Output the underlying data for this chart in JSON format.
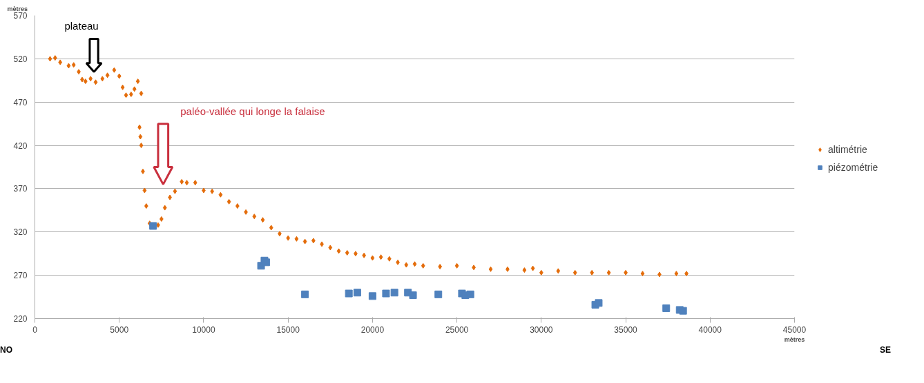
{
  "chart_data": {
    "type": "scatter",
    "xlabel": "mètres",
    "ylabel": "mètres",
    "xlim": [
      0,
      45000
    ],
    "ylim": [
      220,
      570
    ],
    "xticks": [
      0,
      5000,
      10000,
      15000,
      20000,
      25000,
      30000,
      35000,
      40000,
      45000
    ],
    "yticks": [
      220,
      270,
      320,
      370,
      420,
      470,
      520,
      570
    ],
    "grid": "y",
    "legend": "right",
    "annotations": [
      "plateau",
      "paléo-vallée qui longe la falaise",
      "NO",
      "SE"
    ],
    "series": [
      {
        "name": "altimétrie",
        "color": "#e46c0a",
        "marker": "diamond",
        "x": [
          900,
          1200,
          1500,
          2000,
          2300,
          2600,
          2800,
          3000,
          3300,
          3600,
          4000,
          4300,
          4700,
          5000,
          5200,
          5400,
          5700,
          5900,
          6100,
          6300,
          6200,
          6250,
          6300,
          6400,
          6500,
          6600,
          6800,
          7300,
          7500,
          7700,
          8000,
          8300,
          8700,
          9000,
          9500,
          10000,
          10500,
          11000,
          11500,
          12000,
          12500,
          13000,
          13500,
          14000,
          14500,
          15000,
          15500,
          16000,
          16500,
          17000,
          17500,
          18000,
          18500,
          19000,
          19500,
          20000,
          20500,
          21000,
          21500,
          22000,
          22500,
          23000,
          24000,
          25000,
          26000,
          27000,
          28000,
          29000,
          29500,
          30000,
          31000,
          32000,
          33000,
          34000,
          35000,
          36000,
          37000,
          38000,
          38600
        ],
        "values": [
          520,
          521,
          516,
          512,
          513,
          505,
          496,
          494,
          497,
          493,
          497,
          501,
          507,
          500,
          487,
          478,
          479,
          485,
          494,
          480,
          441,
          430,
          420,
          390,
          368,
          350,
          330,
          328,
          335,
          348,
          360,
          367,
          378,
          377,
          377,
          368,
          367,
          363,
          355,
          350,
          343,
          338,
          334,
          325,
          318,
          313,
          312,
          309,
          310,
          306,
          302,
          298,
          296,
          295,
          293,
          290,
          291,
          289,
          285,
          282,
          283,
          281,
          280,
          281,
          279,
          277,
          277,
          276,
          278,
          273,
          275,
          273,
          273,
          273,
          273,
          272,
          271,
          272,
          272
        ]
      },
      {
        "name": "piézométrie",
        "color": "#4f81bd",
        "marker": "square",
        "x": [
          7000,
          13400,
          13600,
          13700,
          16000,
          18600,
          19100,
          20000,
          20800,
          21300,
          22100,
          22400,
          23900,
          25300,
          25500,
          25800,
          33200,
          33400,
          37400,
          38200,
          38400
        ],
        "values": [
          327,
          281,
          287,
          285,
          248,
          249,
          250,
          246,
          249,
          250,
          250,
          247,
          248,
          249,
          247,
          248,
          236,
          238,
          232,
          230,
          229
        ]
      }
    ]
  }
}
